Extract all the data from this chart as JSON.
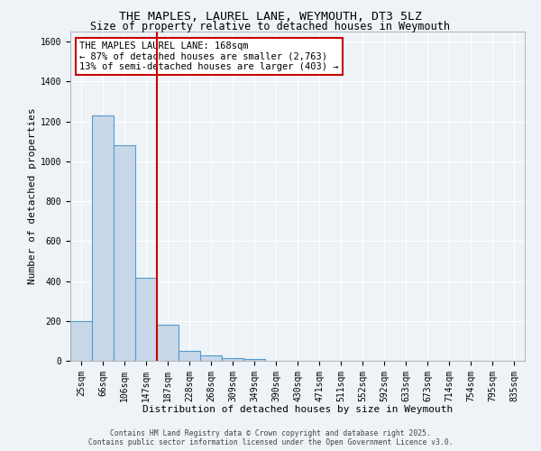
{
  "title_line1": "THE MAPLES, LAUREL LANE, WEYMOUTH, DT3 5LZ",
  "title_line2": "Size of property relative to detached houses in Weymouth",
  "xlabel": "Distribution of detached houses by size in Weymouth",
  "ylabel": "Number of detached properties",
  "categories": [
    "25sqm",
    "66sqm",
    "106sqm",
    "147sqm",
    "187sqm",
    "228sqm",
    "268sqm",
    "309sqm",
    "349sqm",
    "390sqm",
    "430sqm",
    "471sqm",
    "511sqm",
    "552sqm",
    "592sqm",
    "633sqm",
    "673sqm",
    "714sqm",
    "754sqm",
    "795sqm",
    "835sqm"
  ],
  "values": [
    200,
    1230,
    1080,
    415,
    180,
    50,
    25,
    15,
    8,
    0,
    0,
    0,
    0,
    0,
    0,
    0,
    0,
    0,
    0,
    0,
    0
  ],
  "bar_color": "#c8d8e8",
  "bar_edge_color": "#5599cc",
  "vline_color": "#cc0000",
  "ylim": [
    0,
    1650
  ],
  "yticks": [
    0,
    200,
    400,
    600,
    800,
    1000,
    1200,
    1400,
    1600
  ],
  "annotation_text": "THE MAPLES LAUREL LANE: 168sqm\n← 87% of detached houses are smaller (2,763)\n13% of semi-detached houses are larger (403) →",
  "annotation_box_color": "#ffffff",
  "annotation_box_edge": "#cc0000",
  "footer_line1": "Contains HM Land Registry data © Crown copyright and database right 2025.",
  "footer_line2": "Contains public sector information licensed under the Open Government Licence v3.0.",
  "background_color": "#eef3f8",
  "plot_bg_color": "#eef3f8",
  "grid_color": "#ffffff",
  "title_fontsize": 9.5,
  "subtitle_fontsize": 8.5,
  "axis_label_fontsize": 8.0,
  "tick_fontsize": 7.0,
  "annotation_fontsize": 7.5,
  "footer_fontsize": 5.8
}
